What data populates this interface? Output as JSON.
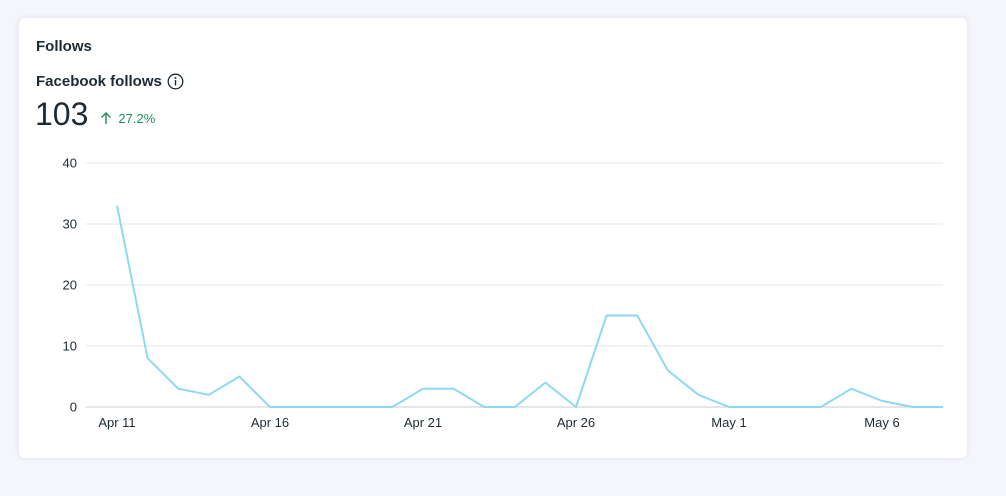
{
  "header": {
    "title": "Follows"
  },
  "metric": {
    "label": "Facebook follows",
    "value": "103",
    "change": "27.2%",
    "info_icon": "info-icon",
    "trend_icon": "arrow-up-icon"
  },
  "colors": {
    "line": "#8fd8f3",
    "grid": "#e1e4e8",
    "axis": "#c9cdd2",
    "positive": "#1a8f5c"
  },
  "chart_data": {
    "type": "line",
    "title": "",
    "xlabel": "",
    "ylabel": "",
    "ylim": [
      0,
      40
    ],
    "yticks": [
      "0",
      "10",
      "20",
      "30",
      "40"
    ],
    "x": [
      "Apr 11",
      "Apr 12",
      "Apr 13",
      "Apr 14",
      "Apr 15",
      "Apr 16",
      "Apr 17",
      "Apr 18",
      "Apr 19",
      "Apr 20",
      "Apr 21",
      "Apr 22",
      "Apr 23",
      "Apr 24",
      "Apr 25",
      "Apr 26",
      "Apr 27",
      "Apr 28",
      "Apr 29",
      "Apr 30",
      "May 1",
      "May 2",
      "May 3",
      "May 4",
      "May 5",
      "May 6",
      "May 7",
      "May 8"
    ],
    "xtick_labels": [
      "Apr 11",
      "Apr 16",
      "Apr 21",
      "Apr 26",
      "May 1",
      "May 6"
    ],
    "series": [
      {
        "values": [
          33,
          8,
          3,
          2,
          5,
          0,
          0,
          0,
          0,
          0,
          3,
          3,
          0,
          0,
          4,
          0,
          15,
          15,
          6,
          2,
          0,
          0,
          0,
          0,
          3,
          1,
          0,
          0
        ]
      }
    ],
    "grid": true,
    "legend": "none"
  }
}
